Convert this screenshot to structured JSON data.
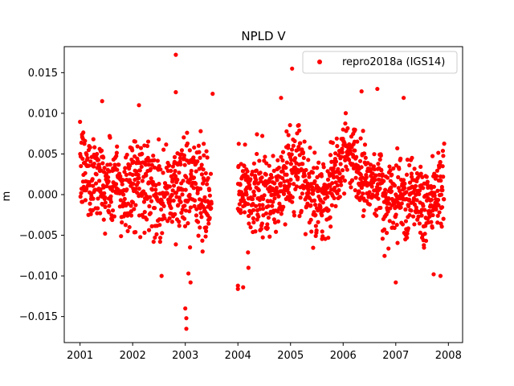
{
  "chart_data": {
    "type": "scatter",
    "title": "NPLD V",
    "xlabel": "",
    "ylabel": "m",
    "xlim": [
      2000.7,
      2008.27
    ],
    "ylim": [
      -0.0182,
      0.0182
    ],
    "x_ticks": [
      2001,
      2002,
      2003,
      2004,
      2005,
      2006,
      2007,
      2008
    ],
    "x_tick_labels": [
      "2001",
      "2002",
      "2003",
      "2004",
      "2005",
      "2006",
      "2007",
      "2008"
    ],
    "y_ticks": [
      -0.015,
      -0.01,
      -0.005,
      0.0,
      0.005,
      0.01,
      0.015
    ],
    "y_tick_labels": [
      "−0.015",
      "−0.010",
      "−0.005",
      "0.000",
      "0.005",
      "0.010",
      "0.015"
    ],
    "grid": false,
    "legend_position": "top-right",
    "series": [
      {
        "name": "repro2018a (IGS14)",
        "color": "#ff0000",
        "marker": "circle",
        "segments": [
          {
            "start": 2001.0,
            "end": 2001.25,
            "mean": 0.0005,
            "amp": 0.0035,
            "noise": 0.0032,
            "step": 0.0065
          },
          {
            "start": 2001.25,
            "end": 2001.75,
            "mean": 0.003,
            "amp": 0.003,
            "noise": 0.003,
            "step": 0.006
          },
          {
            "start": 2001.75,
            "end": 2002.25,
            "mean": 0.0,
            "amp": 0.003,
            "noise": 0.0032,
            "step": 0.006
          },
          {
            "start": 2002.25,
            "end": 2002.75,
            "mean": 0.002,
            "amp": 0.003,
            "noise": 0.003,
            "step": 0.006
          },
          {
            "start": 2002.75,
            "end": 2003.5,
            "mean": 0.0,
            "amp": 0.003,
            "noise": 0.0035,
            "step": 0.006
          },
          {
            "start": 2004.0,
            "end": 2004.3,
            "mean": -0.0015,
            "amp": 0.0035,
            "noise": 0.003,
            "step": 0.0065
          },
          {
            "start": 2004.3,
            "end": 2005.5,
            "mean": 0.001,
            "amp": 0.0025,
            "noise": 0.003,
            "step": 0.0058
          },
          {
            "start": 2005.5,
            "end": 2006.0,
            "mean": 0.0015,
            "amp": 0.0025,
            "noise": 0.0028,
            "step": 0.0058
          },
          {
            "start": 2006.0,
            "end": 2006.75,
            "mean": 0.0035,
            "amp": 0.003,
            "noise": 0.0025,
            "step": 0.0058
          },
          {
            "start": 2006.75,
            "end": 2007.25,
            "mean": -0.002,
            "amp": 0.003,
            "noise": 0.0032,
            "step": 0.006
          },
          {
            "start": 2007.25,
            "end": 2007.92,
            "mean": 0.001,
            "amp": 0.003,
            "noise": 0.003,
            "step": 0.006
          }
        ],
        "outliers": [
          {
            "x": 2001.42,
            "y": 0.0115
          },
          {
            "x": 2002.12,
            "y": 0.011
          },
          {
            "x": 2002.82,
            "y": 0.0172
          },
          {
            "x": 2002.82,
            "y": 0.0126
          },
          {
            "x": 2002.55,
            "y": -0.01
          },
          {
            "x": 2003.0,
            "y": -0.014
          },
          {
            "x": 2003.02,
            "y": -0.0152
          },
          {
            "x": 2003.02,
            "y": -0.0165
          },
          {
            "x": 2003.06,
            "y": -0.0097
          },
          {
            "x": 2003.1,
            "y": -0.0108
          },
          {
            "x": 2003.52,
            "y": 0.0124
          },
          {
            "x": 2004.0,
            "y": -0.0112
          },
          {
            "x": 2004.0,
            "y": -0.0116
          },
          {
            "x": 2004.1,
            "y": -0.0114
          },
          {
            "x": 2004.2,
            "y": -0.009
          },
          {
            "x": 2004.82,
            "y": 0.0119
          },
          {
            "x": 2005.03,
            "y": 0.0155
          },
          {
            "x": 2006.35,
            "y": 0.0127
          },
          {
            "x": 2006.65,
            "y": 0.013
          },
          {
            "x": 2007.0,
            "y": -0.0108
          },
          {
            "x": 2007.15,
            "y": 0.0119
          },
          {
            "x": 2007.72,
            "y": -0.0098
          },
          {
            "x": 2007.85,
            "y": -0.01
          }
        ]
      }
    ]
  }
}
